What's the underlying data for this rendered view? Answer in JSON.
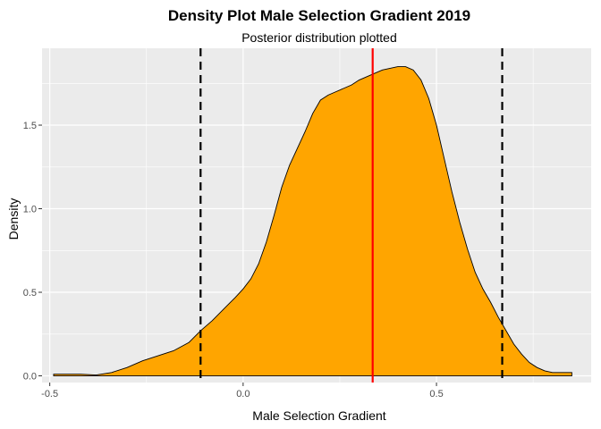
{
  "chart_data": {
    "type": "area",
    "title": "Density Plot Male Selection Gradient 2019",
    "subtitle": "Posterior distribution plotted",
    "xlabel": "Male Selection Gradient",
    "ylabel": "Density",
    "xlim": [
      -0.52,
      0.9
    ],
    "ylim": [
      -0.04,
      1.96
    ],
    "x_ticks": [
      -0.5,
      0.0,
      0.5
    ],
    "x_tick_labels": [
      "-0.5",
      "0.0",
      "0.5"
    ],
    "y_ticks": [
      0.0,
      0.5,
      1.0,
      1.5
    ],
    "y_tick_labels": [
      "0.0",
      "0.5",
      "1.0",
      "1.5"
    ],
    "grid": true,
    "fill_color": "#FFA500",
    "panel_color": "#EBEBEB",
    "series": [
      {
        "x": [
          -0.49,
          -0.42,
          -0.38,
          -0.34,
          -0.3,
          -0.26,
          -0.22,
          -0.18,
          -0.14,
          -0.11,
          -0.08,
          -0.05,
          -0.02,
          0.0,
          0.02,
          0.04,
          0.06,
          0.08,
          0.1,
          0.12,
          0.14,
          0.16,
          0.18,
          0.2,
          0.22,
          0.24,
          0.26,
          0.28,
          0.3,
          0.32,
          0.34,
          0.36,
          0.38,
          0.4,
          0.42,
          0.44,
          0.46,
          0.48,
          0.5,
          0.52,
          0.54,
          0.56,
          0.58,
          0.6,
          0.62,
          0.64,
          0.66,
          0.68,
          0.7,
          0.72,
          0.74,
          0.76,
          0.78,
          0.8,
          0.82,
          0.85
        ],
        "y": [
          0.01,
          0.01,
          0.005,
          0.02,
          0.05,
          0.09,
          0.12,
          0.15,
          0.2,
          0.27,
          0.33,
          0.4,
          0.47,
          0.52,
          0.58,
          0.67,
          0.8,
          0.96,
          1.13,
          1.26,
          1.36,
          1.46,
          1.57,
          1.65,
          1.68,
          1.7,
          1.72,
          1.74,
          1.77,
          1.79,
          1.81,
          1.83,
          1.84,
          1.85,
          1.85,
          1.83,
          1.77,
          1.66,
          1.5,
          1.3,
          1.1,
          0.92,
          0.76,
          0.62,
          0.52,
          0.44,
          0.35,
          0.27,
          0.19,
          0.13,
          0.08,
          0.05,
          0.03,
          0.02,
          0.02,
          0.02
        ]
      }
    ],
    "vlines": [
      {
        "x": -0.11,
        "style": "dashed",
        "color": "#000000"
      },
      {
        "x": 0.335,
        "style": "solid",
        "color": "#FF0000"
      },
      {
        "x": 0.67,
        "style": "dashed",
        "color": "#000000"
      }
    ]
  }
}
